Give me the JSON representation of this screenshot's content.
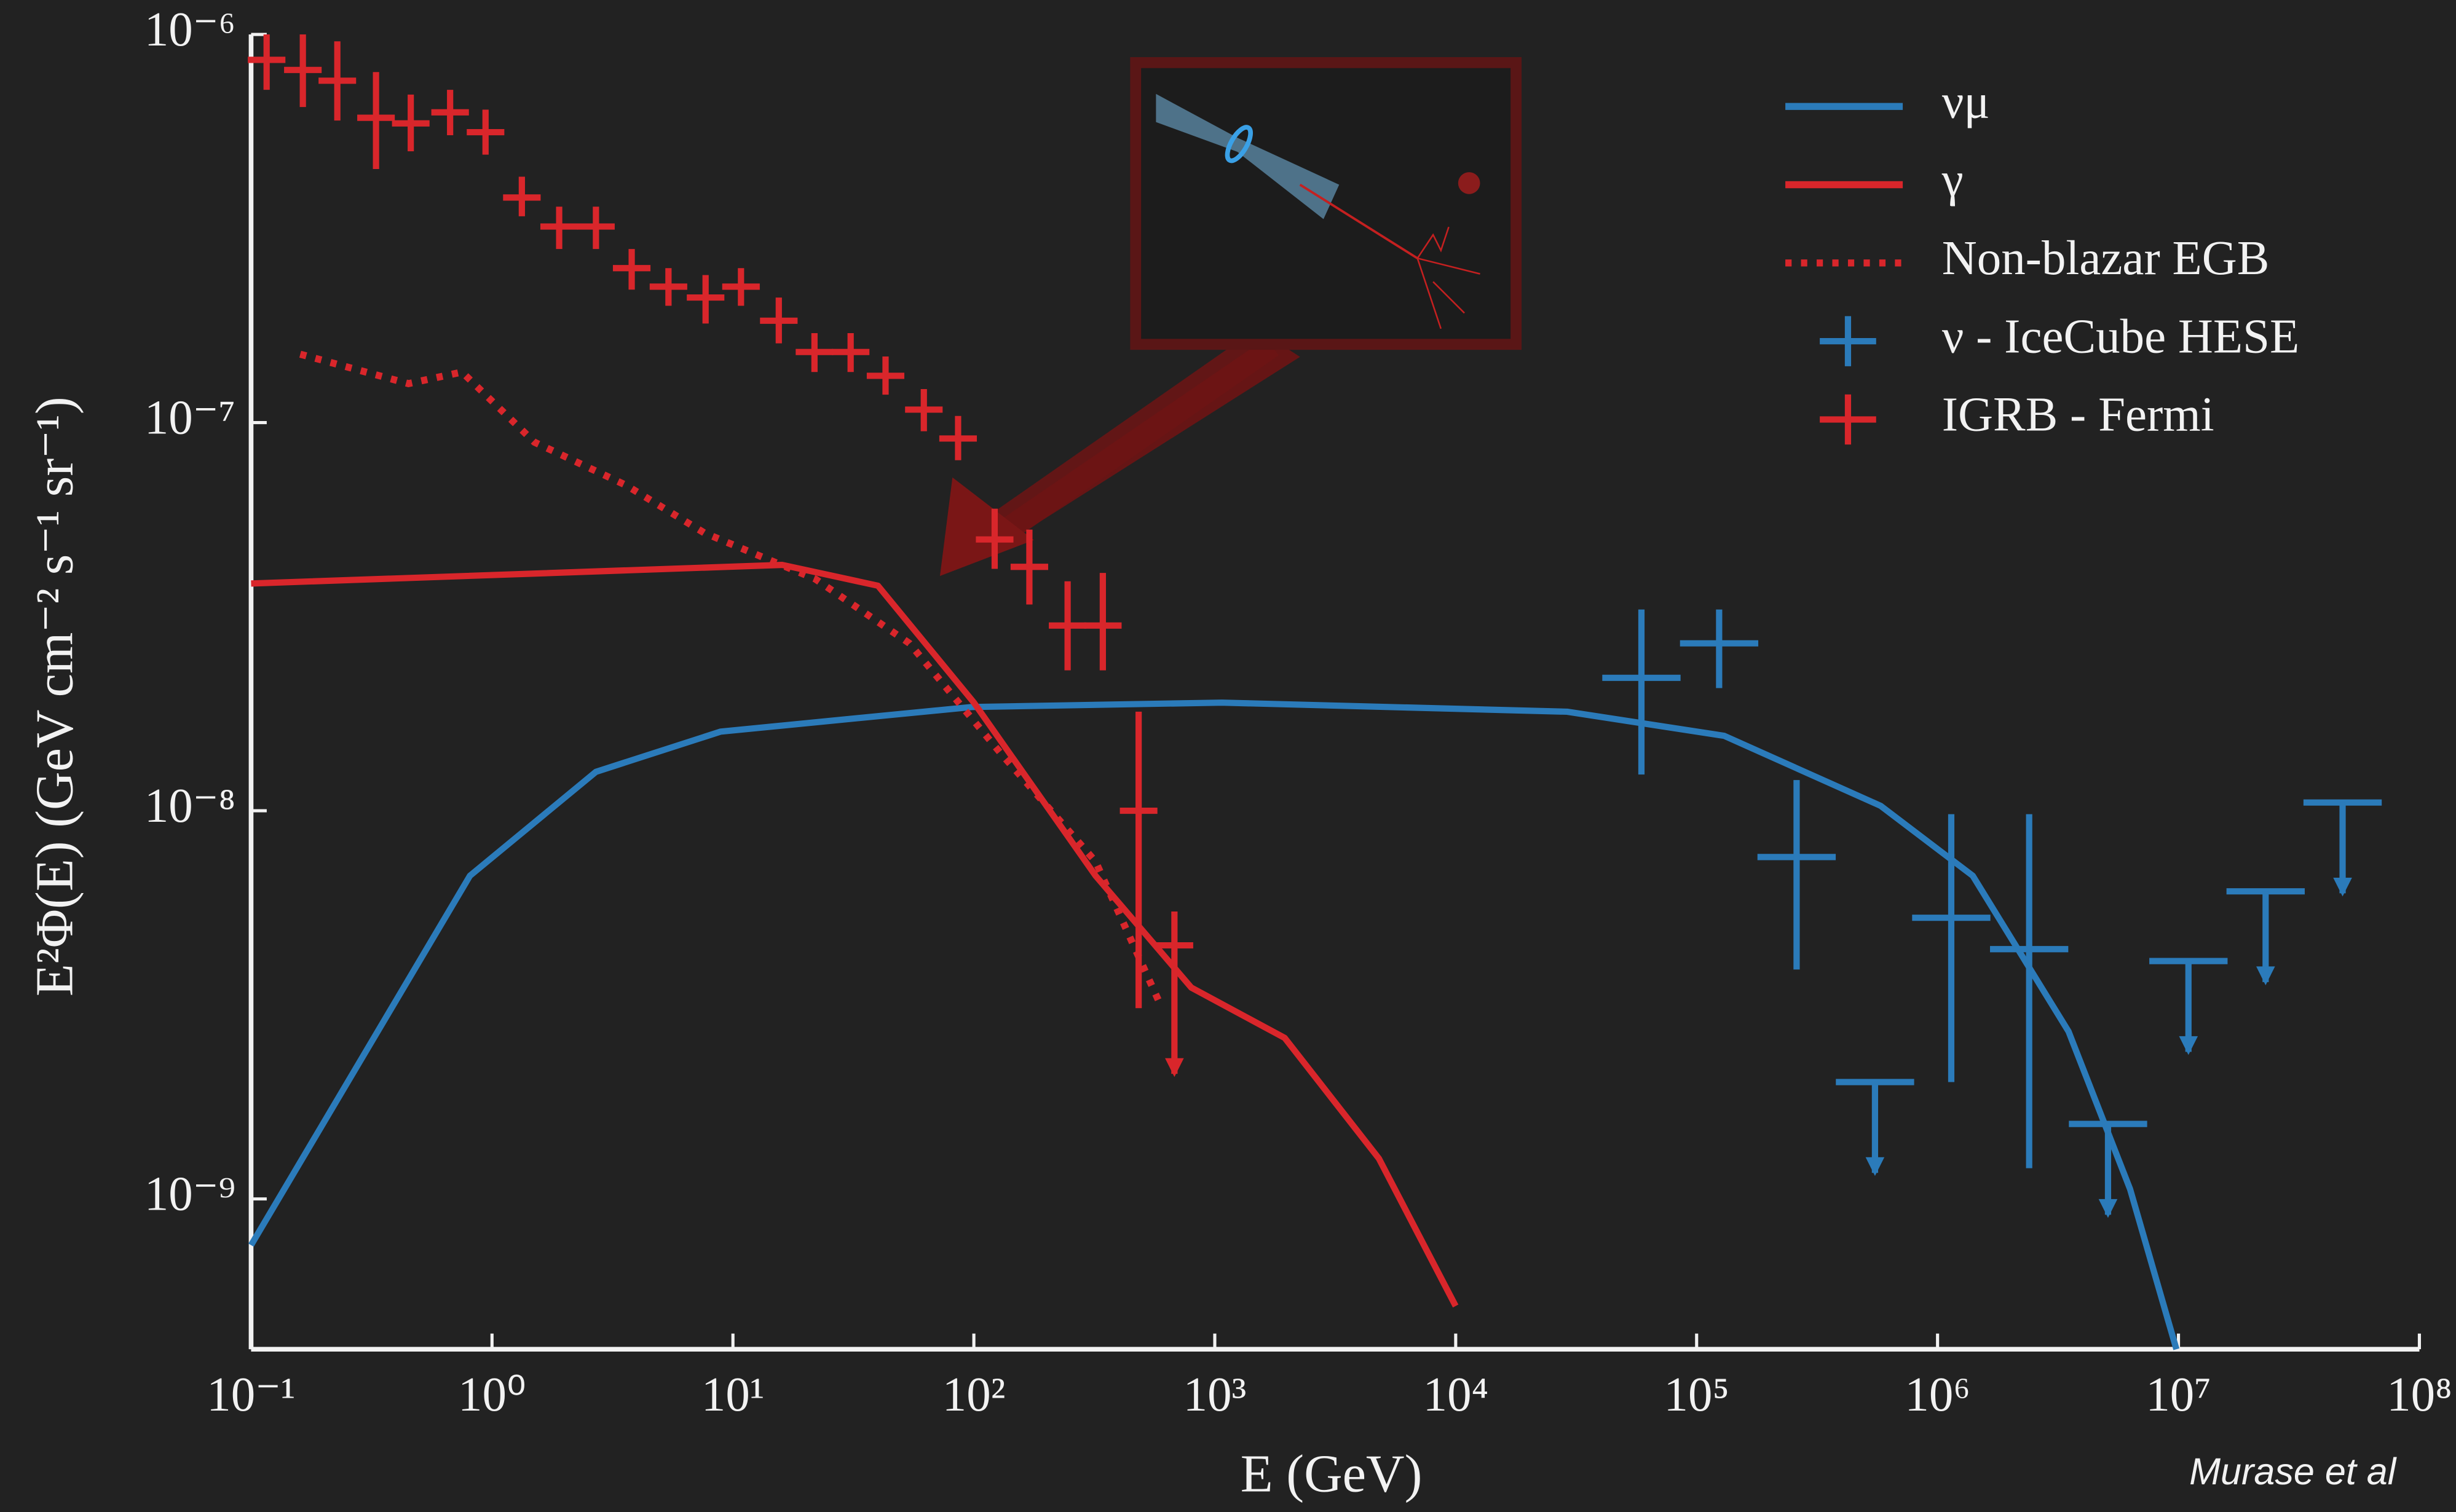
{
  "chart_data": {
    "type": "line",
    "xscale": "log",
    "yscale": "log",
    "legend": "upper right",
    "xlabel": "E (GeV)",
    "ylabel": "E²Φ(E) (GeV cm⁻² s⁻¹ sr⁻¹)",
    "credit": "Murase et al",
    "xlim": [
      0.1,
      100000000
    ],
    "ylim": [
      4.1e-10,
      1e-06
    ],
    "xticks": [
      {
        "value": 0.1,
        "label": "10⁻¹"
      },
      {
        "value": 1,
        "label": "10⁰"
      },
      {
        "value": 10,
        "label": "10¹"
      },
      {
        "value": 100,
        "label": "10²"
      },
      {
        "value": 1000,
        "label": "10³"
      },
      {
        "value": 10000,
        "label": "10⁴"
      },
      {
        "value": 100000,
        "label": "10⁵"
      },
      {
        "value": 1000000,
        "label": "10⁶"
      },
      {
        "value": 10000000,
        "label": "10⁷"
      },
      {
        "value": 100000000,
        "label": "10⁸"
      }
    ],
    "yticks": [
      {
        "value": 1e-09,
        "label": "10⁻⁹"
      },
      {
        "value": 1e-08,
        "label": "10⁻⁸"
      },
      {
        "value": 1e-07,
        "label": "10⁻⁷"
      },
      {
        "value": 1e-06,
        "label": "10⁻⁶"
      }
    ],
    "series": [
      {
        "name": "νμ",
        "style": "solid",
        "color": "#2b7bba",
        "x": [
          0.1,
          0.81,
          2.7,
          8.9,
          98,
          1070,
          29000,
          130000,
          580000,
          1400000,
          3500000,
          6300000,
          9800000
        ],
        "values": [
          7.6e-10,
          6.8e-09,
          1.26e-08,
          1.6e-08,
          1.85e-08,
          1.9e-08,
          1.8e-08,
          1.56e-08,
          1.03e-08,
          6.8e-09,
          2.7e-09,
          1.06e-09,
          4.1e-10
        ]
      },
      {
        "name": "γ",
        "style": "solid",
        "color": "#d9262b",
        "x": [
          0.1,
          16,
          40,
          100,
          320,
          800,
          1950,
          4800,
          10000
        ],
        "values": [
          3.85e-08,
          4.3e-08,
          3.8e-08,
          1.9e-08,
          6.8e-09,
          3.5e-09,
          2.6e-09,
          1.27e-09,
          5.3e-10
        ]
      },
      {
        "name": "Non-blazar EGB",
        "style": "dotted",
        "color": "#d9262b",
        "x": [
          0.16,
          0.45,
          0.75,
          1.5,
          3.6,
          7.6,
          22,
          54,
          130,
          320,
          590
        ],
        "values": [
          1.5e-07,
          1.26e-07,
          1.35e-07,
          8.9e-08,
          6.9e-08,
          5.2e-08,
          3.95e-08,
          2.7e-08,
          1.4e-08,
          7.4e-09,
          3.2e-09
        ]
      },
      {
        "name": "ν - IceCube HESE",
        "style": "errorbar",
        "color": "#2b7bba",
        "x": [
          59000,
          124000,
          260000,
          1140000,
          2400000,
          550000,
          5100000,
          11000000,
          23000000,
          48000000
        ],
        "values": [
          2.2e-08,
          2.7e-08,
          7.6e-09,
          5.3e-09,
          4.4e-09,
          2e-09,
          1.56e-09,
          4.1e-09,
          6.2e-09,
          1.05e-08
        ],
        "y_low": [
          1.24e-08,
          2.07e-08,
          3.9e-09,
          2e-09,
          1.2e-09,
          null,
          null,
          null,
          null,
          null
        ],
        "y_high": [
          3.3e-08,
          3.3e-08,
          1.2e-08,
          9.8e-09,
          9.8e-09,
          null,
          null,
          null,
          null,
          null
        ],
        "upper_limit": [
          false,
          false,
          false,
          false,
          false,
          true,
          true,
          true,
          true,
          true
        ]
      },
      {
        "name": "IGRB - Fermi",
        "style": "errorbar",
        "color": "#d9262b",
        "x": [
          0.116,
          0.164,
          0.228,
          0.33,
          0.46,
          0.67,
          0.94,
          1.33,
          1.9,
          2.7,
          3.8,
          5.4,
          7.7,
          10.8,
          15.5,
          21.8,
          30.8,
          43,
          62,
          86,
          122,
          170,
          245,
          343,
          483,
          680
        ],
        "values": [
          8.6e-07,
          8.1e-07,
          7.6e-07,
          6.1e-07,
          5.9e-07,
          6.3e-07,
          5.6e-07,
          3.8e-07,
          3.2e-07,
          3.2e-07,
          2.5e-07,
          2.24e-07,
          2.1e-07,
          2.24e-07,
          1.83e-07,
          1.52e-07,
          1.52e-07,
          1.32e-07,
          1.08e-07,
          9.1e-08,
          5e-08,
          4.25e-08,
          3e-08,
          3e-08,
          1e-08,
          4.5e-09
        ],
        "y_low": [
          7.2e-07,
          6.5e-07,
          6e-07,
          4.5e-07,
          5e-07,
          5.5e-07,
          4.9e-07,
          3.4e-07,
          2.8e-07,
          2.8e-07,
          2.2e-07,
          2e-07,
          1.8e-07,
          2e-07,
          1.6e-07,
          1.35e-07,
          1.35e-07,
          1.18e-07,
          9.5e-08,
          8e-08,
          4.2e-08,
          3.4e-08,
          2.3e-08,
          2.3e-08,
          3.1e-09,
          2.1e-09
        ],
        "y_high": [
          1e-06,
          1e-06,
          9.6e-07,
          8e-07,
          7e-07,
          7.2e-07,
          6.4e-07,
          4.3e-07,
          3.6e-07,
          3.6e-07,
          2.8e-07,
          2.5e-07,
          2.4e-07,
          2.5e-07,
          2.1e-07,
          1.7e-07,
          1.7e-07,
          1.48e-07,
          1.22e-07,
          1.04e-07,
          6e-08,
          5.3e-08,
          3.9e-08,
          4.1e-08,
          1.8e-08,
          5.5e-09
        ],
        "upper_limit": [
          false,
          false,
          false,
          false,
          false,
          false,
          false,
          false,
          false,
          false,
          false,
          false,
          false,
          false,
          false,
          false,
          false,
          false,
          false,
          false,
          false,
          false,
          false,
          false,
          false,
          true
        ]
      }
    ]
  }
}
